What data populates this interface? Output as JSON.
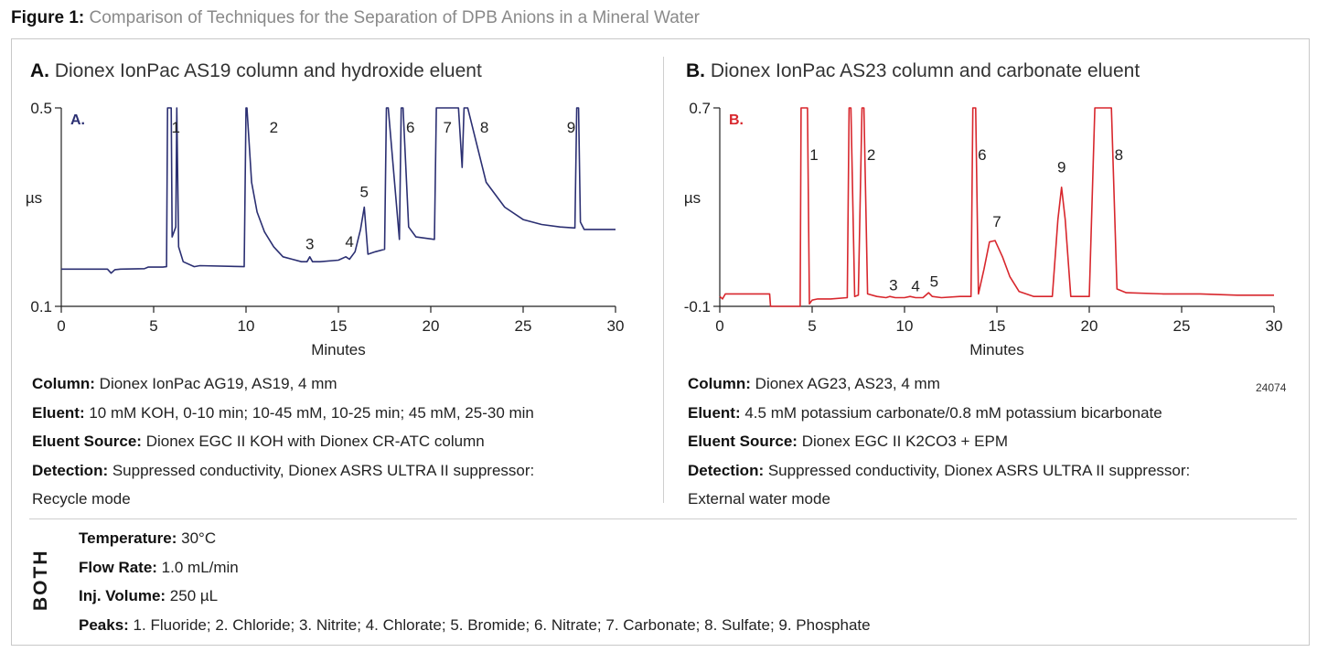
{
  "figure": {
    "label": "Figure 1:",
    "title": "Comparison of Techniques for the Separation of DPB Anions in a Mineral Water"
  },
  "panel_a": {
    "letter": "A.",
    "title": " Dionex IonPac AS19 column and hydroxide eluent",
    "inner_label": "A.",
    "info": [
      {
        "label": "Column:",
        "value": " Dionex IonPac AG19, AS19, 4 mm"
      },
      {
        "label": "Eluent:",
        "value": " 10 mM KOH, 0-10 min; 10-45 mM, 10-25 min; 45 mM, 25-30 min"
      },
      {
        "label": "Eluent Source:",
        "value": " Dionex EGC II KOH with Dionex CR-ATC column"
      },
      {
        "label": "Detection:",
        "value": " Suppressed conductivity, Dionex ASRS ULTRA II suppressor:"
      },
      {
        "label": "",
        "value": "Recycle mode"
      }
    ]
  },
  "panel_b": {
    "letter": "B.",
    "title": " Dionex IonPac AS23 column and carbonate eluent",
    "inner_label": "B.",
    "code": "24074",
    "info": [
      {
        "label": "Column:",
        "value": " Dionex AG23, AS23, 4 mm"
      },
      {
        "label": "Eluent:",
        "value": " 4.5 mM potassium carbonate/0.8 mM potassium bicarbonate"
      },
      {
        "label": "Eluent Source:",
        "value": " Dionex EGC II K2CO3 + EPM"
      },
      {
        "label": "Detection:",
        "value": " Suppressed conductivity, Dionex ASRS ULTRA II suppressor:"
      },
      {
        "label": "",
        "value": "External water mode"
      }
    ]
  },
  "both": {
    "label": "BOTH",
    "info": [
      {
        "label": "Temperature:",
        "value": " 30°C"
      },
      {
        "label": "Flow Rate:",
        "value": " 1.0 mL/min"
      },
      {
        "label": "Inj. Volume:",
        "value": " 250 µL"
      },
      {
        "label": "Peaks:",
        "value": " 1. Fluoride; 2. Chloride; 3. Nitrite; 4. Chlorate; 5. Bromide; 6. Nitrate; 7. Carbonate; 8. Sulfate; 9. Phosphate"
      }
    ]
  },
  "colors": {
    "panel_a_trace": "#2b2f72",
    "panel_b_trace": "#d8272d"
  },
  "chart_data": [
    {
      "type": "line",
      "xlabel": "Minutes",
      "ylabel": "µs",
      "xlim": [
        0,
        30
      ],
      "ylim": [
        0.1,
        0.5
      ],
      "xticks": [
        0,
        5,
        10,
        15,
        20,
        25,
        30
      ],
      "yticks": [
        {
          "value": 0.1,
          "label": "0.1"
        },
        {
          "value": 0.5,
          "label": "0.5"
        }
      ],
      "series": [
        {
          "x": [
            0,
            2.5,
            2.7,
            2.9,
            3.2,
            4.5,
            4.7,
            5.5,
            5.7,
            5.75,
            5.8,
            5.95,
            6.0,
            6.2,
            6.25,
            6.35,
            6.6,
            7.2,
            7.5,
            9.9,
            10.0,
            10.05,
            10.3,
            10.6,
            11.0,
            11.5,
            12.0,
            12.5,
            13.0,
            13.3,
            13.45,
            13.6,
            14.0,
            15.0,
            15.4,
            15.6,
            15.9,
            16.2,
            16.4,
            16.6,
            17.0,
            17.5,
            17.6,
            17.7,
            18.3,
            18.4,
            18.5,
            18.8,
            19.2,
            20.2,
            20.3,
            20.4,
            21.2,
            21.5,
            21.7,
            21.8,
            22.0,
            23,
            24,
            25,
            26,
            27,
            27.8,
            27.9,
            28.0,
            28.1,
            28.3,
            29,
            30
          ],
          "y": [
            0.175,
            0.175,
            0.167,
            0.174,
            0.175,
            0.176,
            0.179,
            0.179,
            0.18,
            0.5,
            0.5,
            0.5,
            0.24,
            0.26,
            0.5,
            0.22,
            0.19,
            0.18,
            0.182,
            0.18,
            0.5,
            0.5,
            0.35,
            0.29,
            0.25,
            0.22,
            0.2,
            0.195,
            0.19,
            0.19,
            0.2,
            0.19,
            0.19,
            0.193,
            0.2,
            0.195,
            0.21,
            0.255,
            0.3,
            0.205,
            0.21,
            0.215,
            0.5,
            0.5,
            0.235,
            0.5,
            0.5,
            0.26,
            0.24,
            0.235,
            0.5,
            0.5,
            0.5,
            0.5,
            0.38,
            0.5,
            0.5,
            0.35,
            0.3,
            0.275,
            0.265,
            0.26,
            0.258,
            0.5,
            0.5,
            0.27,
            0.255,
            0.255,
            0.255
          ]
        }
      ],
      "peaks": [
        {
          "label": "1",
          "x": 6.2,
          "y": 0.45
        },
        {
          "label": "2",
          "x": 11.5,
          "y": 0.45
        },
        {
          "label": "3",
          "x": 13.45,
          "y": 0.215
        },
        {
          "label": "4",
          "x": 15.6,
          "y": 0.22
        },
        {
          "label": "5",
          "x": 16.4,
          "y": 0.32
        },
        {
          "label": "6",
          "x": 18.9,
          "y": 0.45
        },
        {
          "label": "7",
          "x": 20.9,
          "y": 0.45
        },
        {
          "label": "8",
          "x": 22.9,
          "y": 0.45
        },
        {
          "label": "9",
          "x": 27.6,
          "y": 0.45
        }
      ]
    },
    {
      "type": "line",
      "xlabel": "Minutes",
      "ylabel": "µs",
      "xlim": [
        0,
        30
      ],
      "ylim": [
        -0.1,
        0.7
      ],
      "xticks": [
        0,
        5,
        10,
        15,
        20,
        25,
        30
      ],
      "yticks": [
        {
          "value": -0.1,
          "label": "-0.1"
        },
        {
          "value": 0.7,
          "label": "0.7"
        }
      ],
      "series": [
        {
          "x": [
            0,
            0.15,
            0.3,
            2.7,
            2.75,
            2.85,
            4.3,
            4.35,
            4.4,
            4.5,
            4.75,
            4.85,
            5.0,
            5.3,
            6.0,
            6.9,
            7.0,
            7.1,
            7.3,
            7.5,
            7.7,
            7.8,
            8.0,
            8.5,
            9.0,
            9.2,
            9.5,
            10.0,
            10.3,
            10.6,
            11.0,
            11.3,
            11.5,
            12.0,
            13.0,
            13.6,
            13.7,
            13.85,
            14.0,
            14.3,
            14.6,
            14.9,
            15.3,
            15.7,
            16.2,
            17,
            18,
            18.3,
            18.5,
            18.7,
            19.0,
            20.0,
            20.3,
            20.5,
            21.0,
            21.2,
            21.5,
            22,
            24,
            26,
            28,
            30
          ],
          "y": [
            -0.06,
            -0.07,
            -0.05,
            -0.05,
            -0.1,
            -0.1,
            -0.1,
            -0.1,
            0.7,
            0.7,
            0.7,
            -0.09,
            -0.075,
            -0.07,
            -0.07,
            -0.065,
            0.7,
            0.7,
            -0.06,
            -0.055,
            0.7,
            0.7,
            -0.05,
            -0.06,
            -0.065,
            -0.06,
            -0.065,
            -0.065,
            -0.06,
            -0.065,
            -0.065,
            -0.045,
            -0.06,
            -0.065,
            -0.06,
            -0.06,
            0.7,
            0.7,
            -0.05,
            0.05,
            0.16,
            0.165,
            0.1,
            0.02,
            -0.04,
            -0.06,
            -0.06,
            0.25,
            0.38,
            0.25,
            -0.06,
            -0.06,
            0.7,
            0.7,
            0.7,
            0.7,
            -0.03,
            -0.045,
            -0.05,
            -0.05,
            -0.055,
            -0.055
          ]
        }
      ],
      "peaks": [
        {
          "label": "1",
          "x": 5.1,
          "y": 0.49
        },
        {
          "label": "2",
          "x": 8.2,
          "y": 0.49
        },
        {
          "label": "3",
          "x": 9.4,
          "y": -0.035
        },
        {
          "label": "4",
          "x": 10.6,
          "y": -0.04
        },
        {
          "label": "5",
          "x": 11.6,
          "y": -0.02
        },
        {
          "label": "6",
          "x": 14.2,
          "y": 0.49
        },
        {
          "label": "7",
          "x": 15.0,
          "y": 0.22
        },
        {
          "label": "8",
          "x": 21.6,
          "y": 0.49
        },
        {
          "label": "9",
          "x": 18.5,
          "y": 0.44
        }
      ]
    }
  ]
}
